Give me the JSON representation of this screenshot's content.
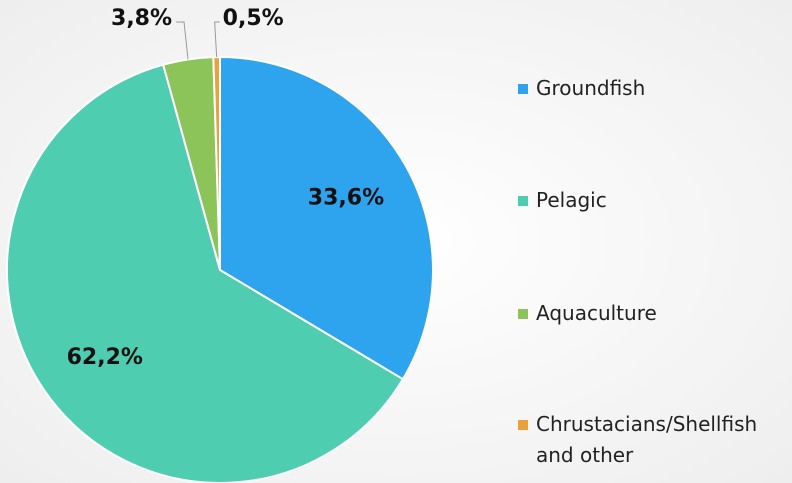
{
  "chart_data": {
    "type": "pie",
    "categories": [
      "Groundfish",
      "Pelagic",
      "Aquaculture",
      "Chrustacians/Shellfish and other"
    ],
    "values": [
      33.6,
      62.2,
      3.8,
      0.5
    ],
    "value_labels": [
      "33,6%",
      "62,2%",
      "3,8%",
      "0,5%"
    ],
    "colors": [
      "#2ea3ee",
      "#4ecdb1",
      "#8cc45a",
      "#e9a23b"
    ],
    "legend": "right"
  }
}
